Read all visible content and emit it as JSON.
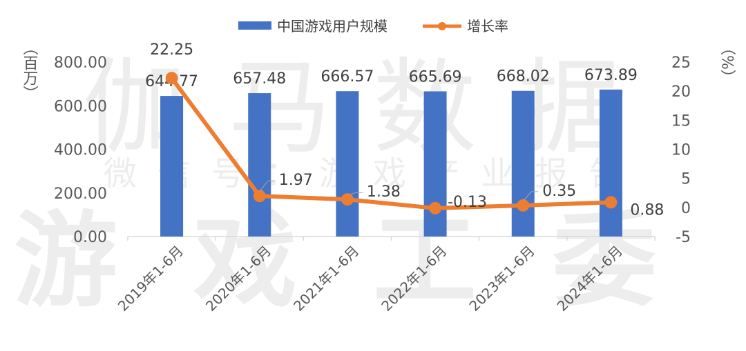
{
  "watermark": {
    "line1": "伽马数据",
    "line2": "微信号：游戏产业报告",
    "line3": "游戏工委"
  },
  "chart_data": {
    "type": "bar+line",
    "categories": [
      "2019年1-6月",
      "2020年1-6月",
      "2021年1-6月",
      "2022年1-6月",
      "2023年1-6月",
      "2024年1-6月"
    ],
    "series": [
      {
        "name": "中国游戏用户规模",
        "kind": "bar",
        "axis": "left",
        "values": [
          644.77,
          657.48,
          666.57,
          665.69,
          668.02,
          673.89
        ],
        "labels": [
          "644.77",
          "657.48",
          "666.57",
          "665.69",
          "668.02",
          "673.89"
        ],
        "color": "#4472C4"
      },
      {
        "name": "增长率",
        "kind": "line",
        "axis": "right",
        "values": [
          22.25,
          1.97,
          1.38,
          -0.13,
          0.35,
          0.88
        ],
        "labels": [
          "22.25",
          "1.97",
          "1.38",
          "-0.13",
          "0.35",
          "0.88"
        ],
        "color": "#ED7D31"
      }
    ],
    "y_left": {
      "label": "（百万）",
      "range": [
        0,
        800
      ],
      "ticks": [
        "0.00",
        "200.00",
        "400.00",
        "600.00",
        "800.00"
      ]
    },
    "y_right": {
      "label": "（%）",
      "range": [
        -5,
        25
      ],
      "ticks": [
        "-5",
        "0",
        "5",
        "10",
        "15",
        "20",
        "25"
      ]
    },
    "legend_position": "top-center"
  }
}
